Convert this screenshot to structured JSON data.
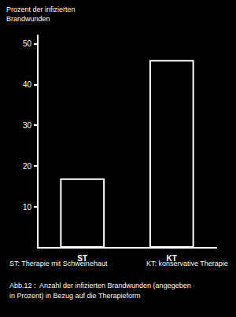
{
  "chart_data": {
    "type": "bar",
    "y_label": "Prozent der infizierten\nBrandwunden",
    "categories": [
      "ST",
      "KT"
    ],
    "values": [
      17,
      46
    ],
    "color": "#ffffff",
    "ylim": [
      0,
      52
    ],
    "yticks": [
      10,
      20,
      30,
      40,
      50
    ],
    "grid": false,
    "annotations": [
      "ST: Therapie mit Schweinehaut",
      "KT: konservative Therapie",
      "Abb.12 :  Anzahl der infizierten Brandwunden (angegeben\nin Prozent) in Bezug auf die Therapieform"
    ]
  }
}
